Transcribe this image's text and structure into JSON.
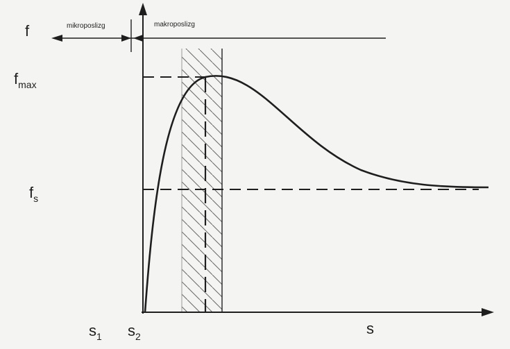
{
  "labels": {
    "f": "f",
    "f_max_main": "f",
    "f_max_sub": "max",
    "f_s_main": "f",
    "f_s_sub": "s",
    "s1_main": "s",
    "s1_sub": "1",
    "s2_main": "s",
    "s2_sub": "2",
    "s_axis": "s",
    "mikroposlizg": "mikroposlizg",
    "makroposlizg": "makroposlizg"
  },
  "colors": {
    "ink": "#1e1e1e",
    "background": "#f4f4f2"
  }
}
